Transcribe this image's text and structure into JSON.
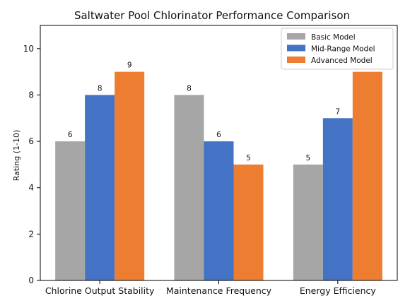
{
  "chart_data": {
    "type": "bar",
    "title": "Saltwater Pool Chlorinator Performance Comparison",
    "xlabel": "",
    "ylabel": "Rating (1-10)",
    "ylim": [
      0,
      11
    ],
    "yticks": [
      0,
      2,
      4,
      6,
      8,
      10
    ],
    "grid": false,
    "legend_position": "top-right",
    "categories": [
      "Chlorine Output Stability",
      "Maintenance Frequency",
      "Energy Efficiency"
    ],
    "series": [
      {
        "name": "Basic Model",
        "color": "#a6a6a6",
        "values": [
          6,
          8,
          5
        ]
      },
      {
        "name": "Mid-Range Model",
        "color": "#4472c4",
        "values": [
          8,
          6,
          7
        ]
      },
      {
        "name": "Advanced Model",
        "color": "#ed7d31",
        "values": [
          9,
          5,
          9
        ]
      }
    ],
    "data_labels": [
      [
        "6",
        "8",
        "9"
      ],
      [
        "8",
        "6",
        "5"
      ],
      [
        "5",
        "7",
        ""
      ]
    ]
  }
}
